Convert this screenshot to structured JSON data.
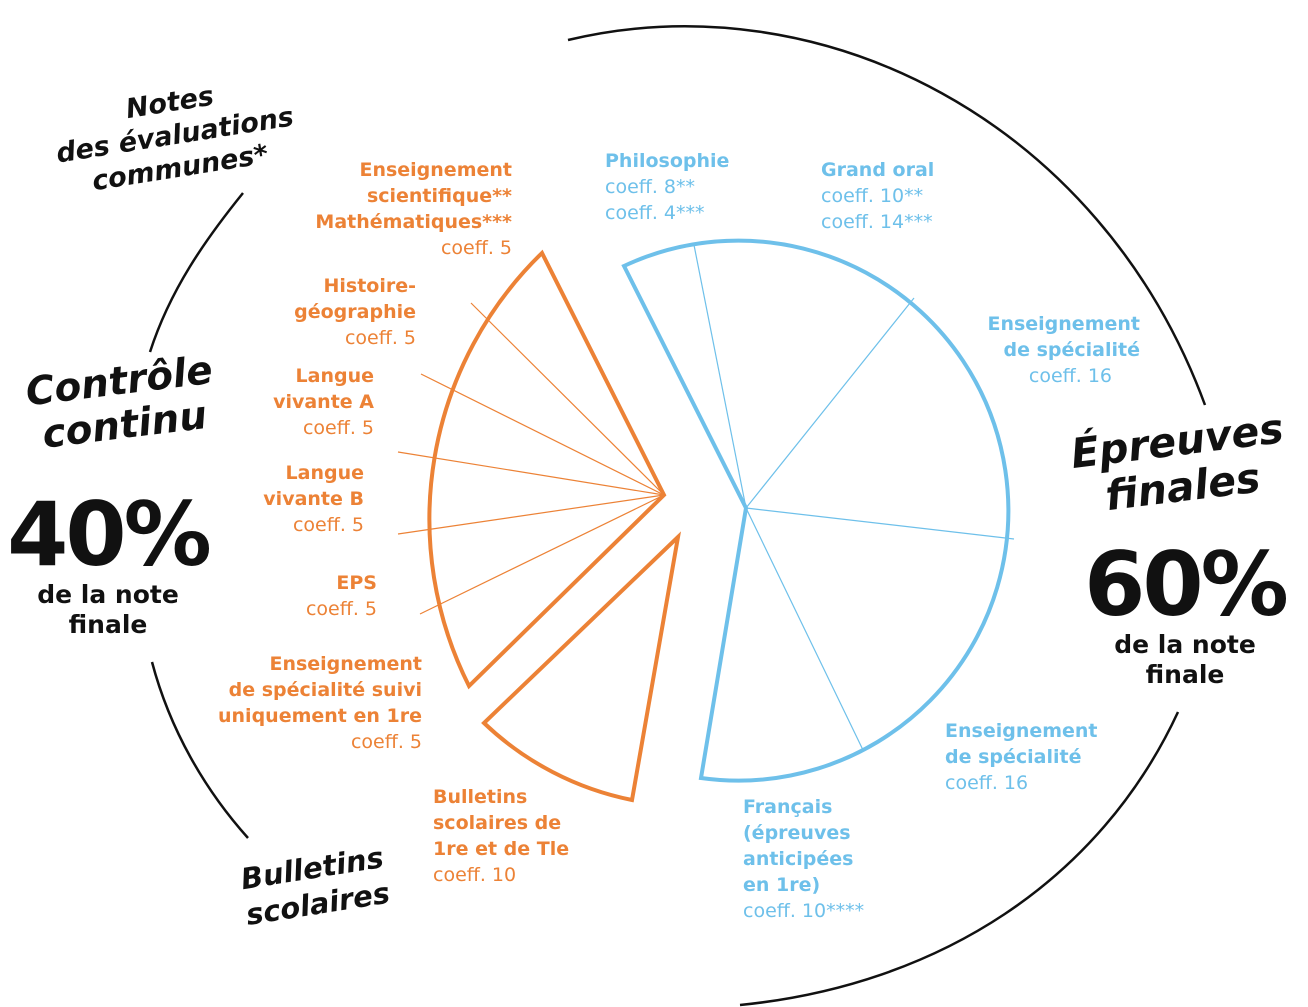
{
  "colors": {
    "orange": "#ec8236",
    "blue": "#6ec0ea",
    "ink": "#111111"
  },
  "left": {
    "title_line1": "Contrôle",
    "title_line2": "continu",
    "percent": "40%",
    "caption_line1": "de la note",
    "caption_line2": "finale",
    "group_top_line1": "Notes",
    "group_top_line2": "des évaluations",
    "group_top_line3": "communes*",
    "group_bottom_line1": "Bulletins",
    "group_bottom_line2": "scolaires"
  },
  "right": {
    "title_line1": "Épreuves",
    "title_line2": "finales",
    "percent": "60%",
    "caption_line1": "de la note",
    "caption_line2": "finale"
  },
  "orange_items": [
    {
      "lines": [
        "Enseignement",
        "scientifique**",
        "Mathématiques***"
      ],
      "coeff": "coeff. 5"
    },
    {
      "lines": [
        "Histoire-",
        "géographie"
      ],
      "coeff": "coeff. 5"
    },
    {
      "lines": [
        "Langue",
        "vivante A"
      ],
      "coeff": "coeff. 5"
    },
    {
      "lines": [
        "Langue",
        "vivante B"
      ],
      "coeff": "coeff. 5"
    },
    {
      "lines": [
        "EPS"
      ],
      "coeff": "coeff. 5"
    },
    {
      "lines": [
        "Enseignement",
        "de spécialité suivi",
        "uniquement en 1re"
      ],
      "coeff": "coeff. 5"
    },
    {
      "lines": [
        "Bulletins",
        "scolaires de",
        "1re et de Tle"
      ],
      "coeff": "coeff. 10"
    }
  ],
  "blue_items": [
    {
      "lines": [
        "Philosophie"
      ],
      "coeff": "coeff. 8**",
      "coeff2": "coeff. 4***"
    },
    {
      "lines": [
        "Grand oral"
      ],
      "coeff": "coeff. 10**",
      "coeff2": "coeff. 14***"
    },
    {
      "lines": [
        "Enseignement",
        "de spécialité"
      ],
      "coeff": "coeff. 16"
    },
    {
      "lines": [
        "Enseignement",
        "de spécialité"
      ],
      "coeff": "coeff. 16"
    },
    {
      "lines": [
        "Français",
        "(épreuves",
        "anticipées",
        "en 1re)"
      ],
      "coeff": "coeff. 10****"
    }
  ]
}
